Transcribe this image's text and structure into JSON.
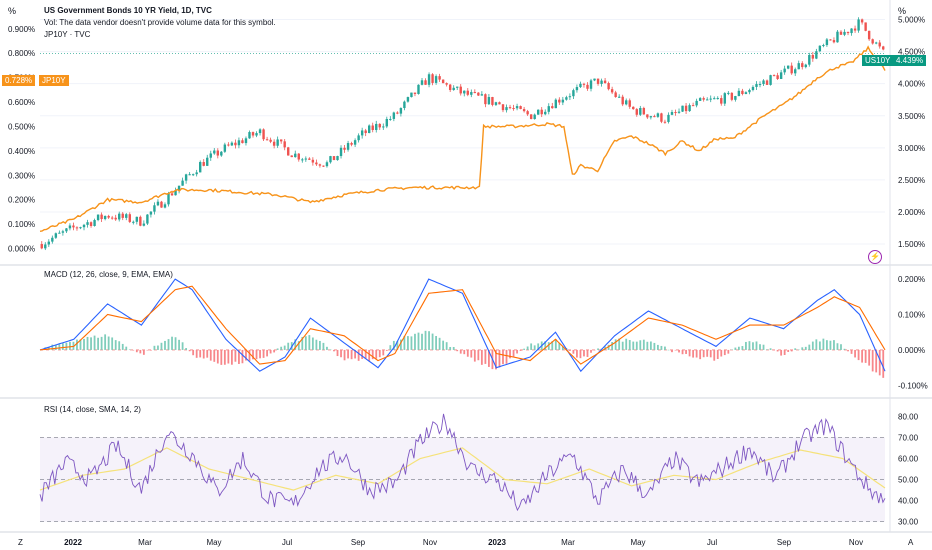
{
  "header": {
    "title": "US Government Bonds 10 YR Yield, 1D, TVC",
    "vol_note": "Vol: The data vendor doesn't provide volume data for this symbol.",
    "compare_symbol": "JP10Y · TVC"
  },
  "corners": {
    "left_unit": "%",
    "right_unit": "%",
    "left_btn": "Z",
    "right_btn": "A"
  },
  "tags": {
    "us_label": "US10Y",
    "us_value": "4.439%",
    "jp_value": "0.728%",
    "jp_label": "JP10Y"
  },
  "colors": {
    "up": "#26a69a",
    "down": "#ef5350",
    "jp_line": "#f7931a",
    "macd_line": "#2962ff",
    "signal_line": "#ff6d00",
    "rsi_line": "#7e57c2",
    "rsi_ma": "#f5e27a",
    "rsi_band": "#7e57c2"
  },
  "chart_data": [
    {
      "type": "line",
      "title": "US Government Bonds 10 YR Yield, 1D, TVC",
      "x_ticks": [
        "2022",
        "Mar",
        "May",
        "Jul",
        "Sep",
        "Nov",
        "2023",
        "Mar",
        "May",
        "Jul",
        "Sep",
        "Nov"
      ],
      "right_axis_ticks": [
        "5.000%",
        "4.500%",
        "4.000%",
        "3.500%",
        "3.000%",
        "2.500%",
        "2.000%",
        "1.500%"
      ],
      "left_axis_ticks": [
        "0.900%",
        "0.800%",
        "0.700%",
        "0.600%",
        "0.500%",
        "0.400%",
        "0.300%",
        "0.200%",
        "0.100%",
        "0.000%"
      ],
      "series": [
        {
          "name": "US10Y",
          "axis": "right",
          "t": [
            0,
            4,
            8,
            12,
            16,
            19,
            22,
            26,
            30,
            34,
            38,
            42,
            46,
            50,
            54,
            58,
            62,
            66,
            70,
            74,
            78,
            82,
            86,
            90,
            94,
            97,
            100
          ],
          "values": [
            1.5,
            1.75,
            1.95,
            1.85,
            2.35,
            2.75,
            3.0,
            3.25,
            2.9,
            2.75,
            3.2,
            3.5,
            4.1,
            3.85,
            3.7,
            3.5,
            3.8,
            4.05,
            3.6,
            3.45,
            3.7,
            3.8,
            4.05,
            4.3,
            4.7,
            4.95,
            4.44
          ]
        },
        {
          "name": "JP10Y",
          "axis": "left",
          "t": [
            0,
            4,
            8,
            12,
            16,
            20,
            24,
            28,
            32,
            36,
            40,
            44,
            48,
            52,
            52.5,
            56,
            60,
            62,
            63,
            64,
            66,
            68,
            70,
            72,
            74,
            76,
            78,
            80,
            82,
            84,
            86,
            88,
            90,
            92,
            94,
            96,
            98,
            100
          ],
          "values": [
            0.07,
            0.12,
            0.2,
            0.19,
            0.24,
            0.24,
            0.23,
            0.22,
            0.19,
            0.22,
            0.24,
            0.25,
            0.25,
            0.25,
            0.5,
            0.5,
            0.51,
            0.5,
            0.3,
            0.34,
            0.32,
            0.44,
            0.46,
            0.43,
            0.39,
            0.44,
            0.4,
            0.45,
            0.45,
            0.5,
            0.55,
            0.59,
            0.64,
            0.7,
            0.74,
            0.76,
            0.82,
            0.73
          ]
        }
      ]
    },
    {
      "type": "line",
      "title": "MACD (12, 26, close, 9, EMA, EMA)",
      "right_axis_ticks": [
        "0.200%",
        "0.100%",
        "0.000%",
        "-0.100%"
      ],
      "ylim": [
        -0.13,
        0.22
      ],
      "series": [
        {
          "name": "MACD",
          "t": [
            0,
            4,
            8,
            12,
            16,
            18,
            22,
            26,
            29,
            32,
            36,
            40,
            42,
            46,
            50,
            54,
            58,
            61,
            64,
            68,
            72,
            76,
            80,
            84,
            88,
            92,
            94,
            97,
            100
          ],
          "values": [
            0.0,
            0.03,
            0.13,
            0.07,
            0.2,
            0.17,
            0.03,
            -0.06,
            -0.02,
            0.09,
            0.02,
            -0.05,
            0.01,
            0.2,
            0.16,
            -0.05,
            -0.02,
            0.05,
            -0.06,
            0.04,
            0.11,
            0.06,
            0.01,
            0.09,
            0.06,
            0.14,
            0.17,
            0.1,
            -0.06
          ]
        },
        {
          "name": "Signal",
          "t": [
            0,
            4,
            8,
            12,
            16,
            18,
            22,
            26,
            29,
            32,
            36,
            40,
            42,
            46,
            50,
            54,
            58,
            61,
            64,
            68,
            72,
            76,
            80,
            84,
            88,
            92,
            94,
            97,
            100
          ],
          "values": [
            0.0,
            0.01,
            0.1,
            0.08,
            0.17,
            0.18,
            0.06,
            -0.04,
            -0.03,
            0.06,
            0.04,
            -0.03,
            -0.01,
            0.16,
            0.17,
            -0.01,
            -0.03,
            0.03,
            -0.04,
            0.02,
            0.09,
            0.07,
            0.03,
            0.07,
            0.07,
            0.12,
            0.15,
            0.12,
            0.0
          ]
        }
      ]
    },
    {
      "type": "line",
      "title": "RSI (14, close, SMA, 14, 2)",
      "right_axis_ticks": [
        "80.00",
        "70.00",
        "60.00",
        "50.00",
        "40.00",
        "30.00"
      ],
      "ylim": [
        27,
        83
      ],
      "band": [
        30,
        70
      ],
      "series": [
        {
          "name": "RSI",
          "t": [
            0,
            3,
            6,
            9,
            12,
            15,
            18,
            21,
            24,
            27,
            30,
            33,
            36,
            39,
            42,
            45,
            48,
            51,
            54,
            57,
            60,
            63,
            66,
            69,
            72,
            75,
            78,
            81,
            84,
            87,
            90,
            93,
            96,
            98,
            100
          ],
          "values": [
            42,
            58,
            50,
            66,
            45,
            73,
            62,
            44,
            60,
            41,
            38,
            55,
            62,
            45,
            48,
            68,
            78,
            55,
            50,
            36,
            52,
            62,
            40,
            55,
            42,
            60,
            48,
            56,
            65,
            50,
            68,
            76,
            57,
            46,
            40
          ]
        },
        {
          "name": "RSI MA",
          "t": [
            0,
            5,
            10,
            15,
            20,
            25,
            30,
            35,
            40,
            45,
            50,
            55,
            60,
            65,
            70,
            75,
            80,
            85,
            90,
            95,
            100
          ],
          "values": [
            45,
            52,
            55,
            65,
            55,
            50,
            45,
            52,
            48,
            60,
            65,
            50,
            48,
            55,
            47,
            52,
            50,
            58,
            64,
            60,
            46
          ]
        }
      ]
    }
  ]
}
